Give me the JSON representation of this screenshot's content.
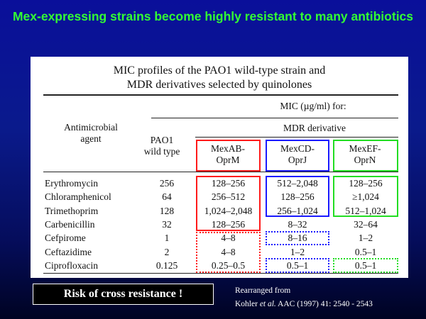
{
  "slide": {
    "title": "Mex-expressing strains become highly resistant to many antibiotics",
    "risk_label": "Risk of cross resistance !",
    "citation_line1": "Rearranged from",
    "citation_author": "Kohler ",
    "citation_etal": "et al.",
    "citation_rest": " AAC (1997) 41: 2540 - 2543"
  },
  "table": {
    "title_line1": "MIC profiles of the PAO1 wild-type strain and",
    "title_line2": "MDR derivatives selected by quinolones",
    "mic_header": "MIC (µg/ml) for:",
    "agent_header_line1": "Antimicrobial",
    "agent_header_line2": "agent",
    "mdr_header": "MDR derivative",
    "pao1_line1": "PAO1",
    "pao1_line2": "wild type",
    "mexab_line1": "MexAB-",
    "mexab_line2": "OprM",
    "mexcd_line1": "MexCD-",
    "mexcd_line2": "OprJ",
    "mexef_line1": "MexEF-",
    "mexef_line2": "OprN",
    "rows": [
      {
        "agent": "Erythromycin",
        "pao1": "256",
        "mexab": "128–256",
        "mexcd": "512–2,048",
        "mexef": "128–256"
      },
      {
        "agent": "Chloramphenicol",
        "pao1": "64",
        "mexab": "256–512",
        "mexcd": "128–256",
        "mexef": "≥1,024"
      },
      {
        "agent": "Trimethoprim",
        "pao1": "128",
        "mexab": "1,024–2,048",
        "mexcd": "256–1,024",
        "mexef": "512–1,024"
      },
      {
        "agent": "Carbenicillin",
        "pao1": "32",
        "mexab": "128–256",
        "mexcd": "8–32",
        "mexef": "32–64"
      },
      {
        "agent": "Cefpirome",
        "pao1": "1",
        "mexab": "4–8",
        "mexcd": "8–16",
        "mexef": "1–2"
      },
      {
        "agent": "Ceftazidime",
        "pao1": "2",
        "mexab": "4–8",
        "mexcd": "1–2",
        "mexef": "0.5–1"
      },
      {
        "agent": "Ciprofloxacin",
        "pao1": "0.125",
        "mexab": "0.25–0.5",
        "mexcd": "0.5–1",
        "mexef": "0.5–1"
      }
    ]
  },
  "colors": {
    "title": "#33ff33",
    "mexab_box": "#ff1a1a",
    "mexcd_box": "#1a1aff",
    "mexef_box": "#22dd22"
  }
}
